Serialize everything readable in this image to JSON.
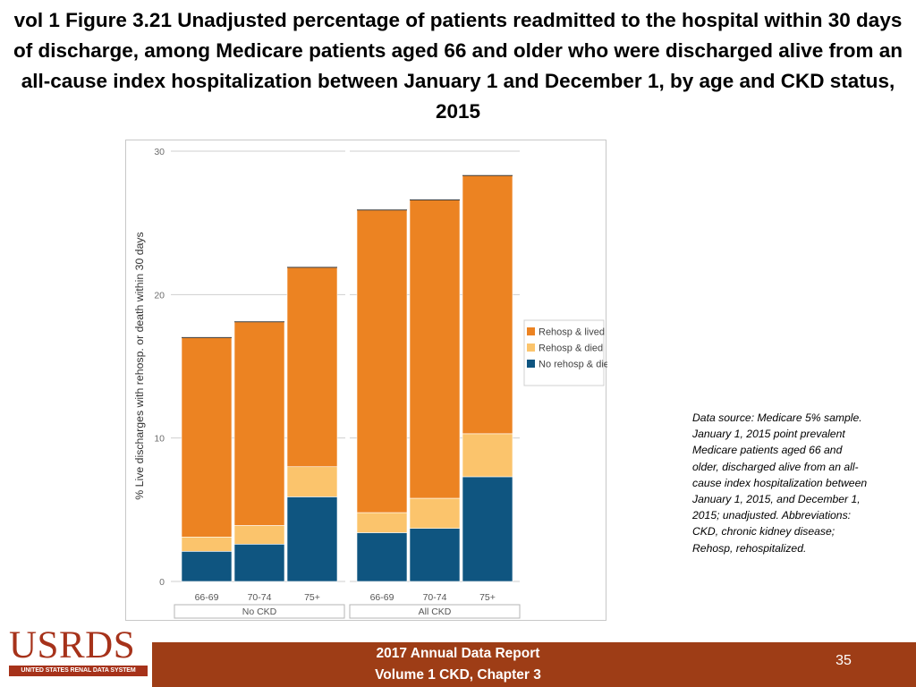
{
  "slide": {
    "title": "vol 1 Figure 3.21 Unadjusted percentage of patients readmitted to the hospital within 30 days of discharge, among Medicare patients aged 66 and older who were discharged alive from an all-cause index hospitalization between January 1 and December 1, by age and CKD status, 2015",
    "source_note": "Data source: Medicare 5% sample. January 1, 2015 point prevalent Medicare patients aged 66 and older, discharged alive from an all-cause index hospitalization between January 1, 2015, and December 1, 2015; unadjusted. Abbreviations: CKD, chronic kidney disease; Rehosp, rehospitalized."
  },
  "footer": {
    "line1": "2017 Annual Data Report",
    "line2": "Volume 1 CKD, Chapter 3",
    "page_number": "35",
    "logo_text": "USRDS",
    "logo_subtext": "UNITED STATES RENAL DATA SYSTEM"
  },
  "chart_data": {
    "type": "bar",
    "stacked": true,
    "title": "",
    "xlabel": "",
    "ylabel": "% Live discharges with rehosp. or death within 30 days",
    "ylim": [
      0,
      30
    ],
    "yticks": [
      "0",
      "10",
      "20",
      "30"
    ],
    "groups": [
      {
        "name": "No CKD",
        "categories": [
          "66-69",
          "70-74",
          "75+"
        ]
      },
      {
        "name": "All CKD",
        "categories": [
          "66-69",
          "70-74",
          "75+"
        ]
      }
    ],
    "series": [
      {
        "name": "No rehosp & died",
        "color": "#0f5580",
        "values": [
          2.1,
          2.6,
          5.9,
          3.4,
          3.7,
          7.3
        ]
      },
      {
        "name": "Rehosp & died",
        "color": "#fbc46c",
        "values": [
          1.0,
          1.3,
          2.1,
          1.4,
          2.1,
          3.0
        ]
      },
      {
        "name": "Rehosp & lived",
        "color": "#ec8322",
        "values": [
          13.9,
          14.2,
          13.9,
          21.1,
          20.8,
          18.0
        ]
      }
    ],
    "legend": {
      "position": "right",
      "entries": [
        "Rehosp & lived",
        "Rehosp & died",
        "No rehosp & died"
      ]
    }
  }
}
